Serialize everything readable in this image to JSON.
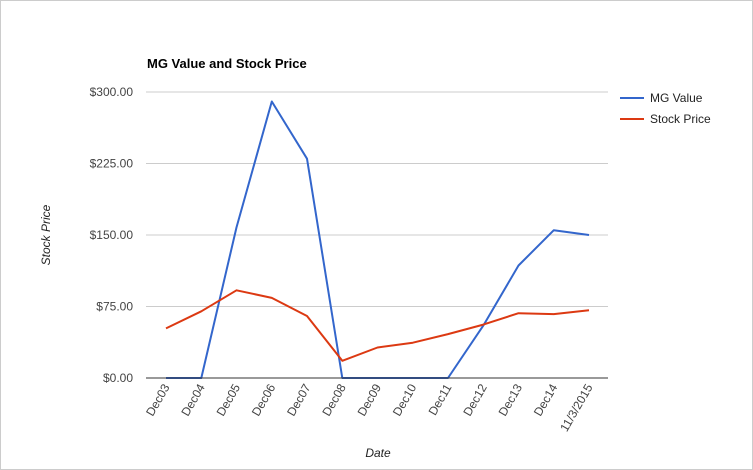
{
  "chart_data": {
    "type": "line",
    "title": "MG Value and Stock Price",
    "xlabel": "Date",
    "ylabel": "Stock Price",
    "categories": [
      "Dec03",
      "Dec04",
      "Dec05",
      "Dec06",
      "Dec07",
      "Dec08",
      "Dec09",
      "Dec10",
      "Dec11",
      "Dec12",
      "Dec13",
      "Dec14",
      "11/3/2015"
    ],
    "yticks": [
      "$0.00",
      "$75.00",
      "$150.00",
      "$225.00",
      "$300.00"
    ],
    "ylim": [
      0,
      300
    ],
    "grid": true,
    "legend_position": "right",
    "series": [
      {
        "name": "MG Value",
        "color": "#3366cc",
        "values": [
          0,
          0,
          158,
          290,
          230,
          0,
          0,
          0,
          0,
          55,
          118,
          155,
          150
        ]
      },
      {
        "name": "Stock Price",
        "color": "#dc3912",
        "values": [
          52,
          70,
          92,
          84,
          65,
          18,
          32,
          37,
          46,
          56,
          68,
          67,
          71
        ]
      }
    ]
  }
}
